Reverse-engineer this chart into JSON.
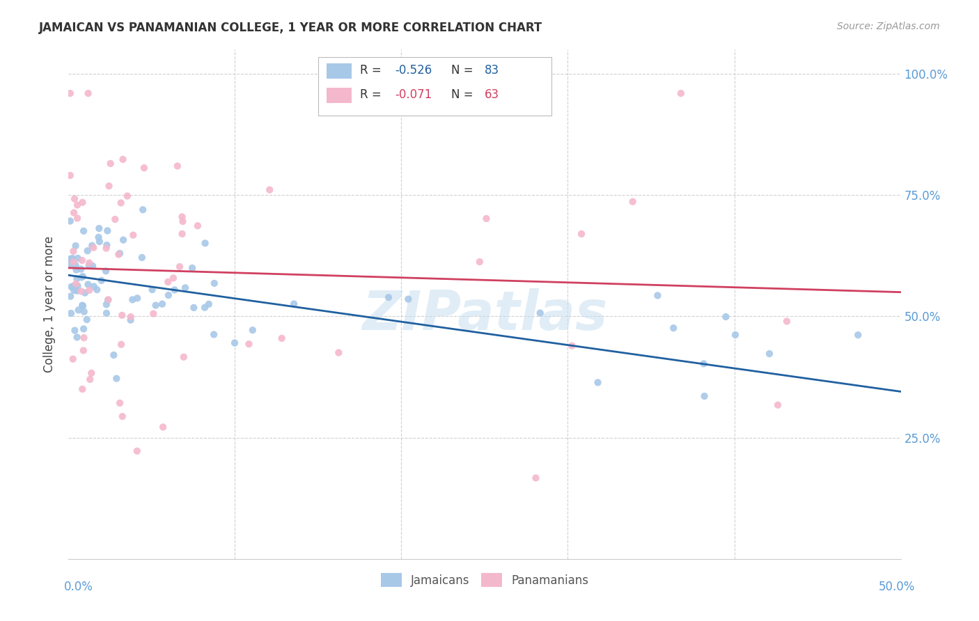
{
  "title": "JAMAICAN VS PANAMANIAN COLLEGE, 1 YEAR OR MORE CORRELATION CHART",
  "source": "Source: ZipAtlas.com",
  "ylabel": "College, 1 year or more",
  "blue_color": "#a8c8e8",
  "pink_color": "#f4b8cc",
  "blue_line_color": "#2060a0",
  "pink_line_color": "#d04060",
  "blue_label": "Jamaicans",
  "pink_label": "Panamanians",
  "watermark": "ZIPatlas",
  "r_blue": -0.526,
  "n_blue": 83,
  "r_pink": -0.071,
  "n_pink": 63,
  "blue_intercept": 0.585,
  "blue_slope": -0.48,
  "pink_intercept": 0.6,
  "pink_slope": -0.1,
  "xlim": [
    0.0,
    0.5
  ],
  "ylim": [
    0.0,
    1.05
  ],
  "ytick_positions": [
    0.25,
    0.5,
    0.75,
    1.0
  ],
  "ytick_labels": [
    "25.0%",
    "50.0%",
    "75.0%",
    "100.0%"
  ],
  "right_tick_color": "#5b9bd5",
  "grid_color": "#d0d0d0",
  "seed": 42
}
